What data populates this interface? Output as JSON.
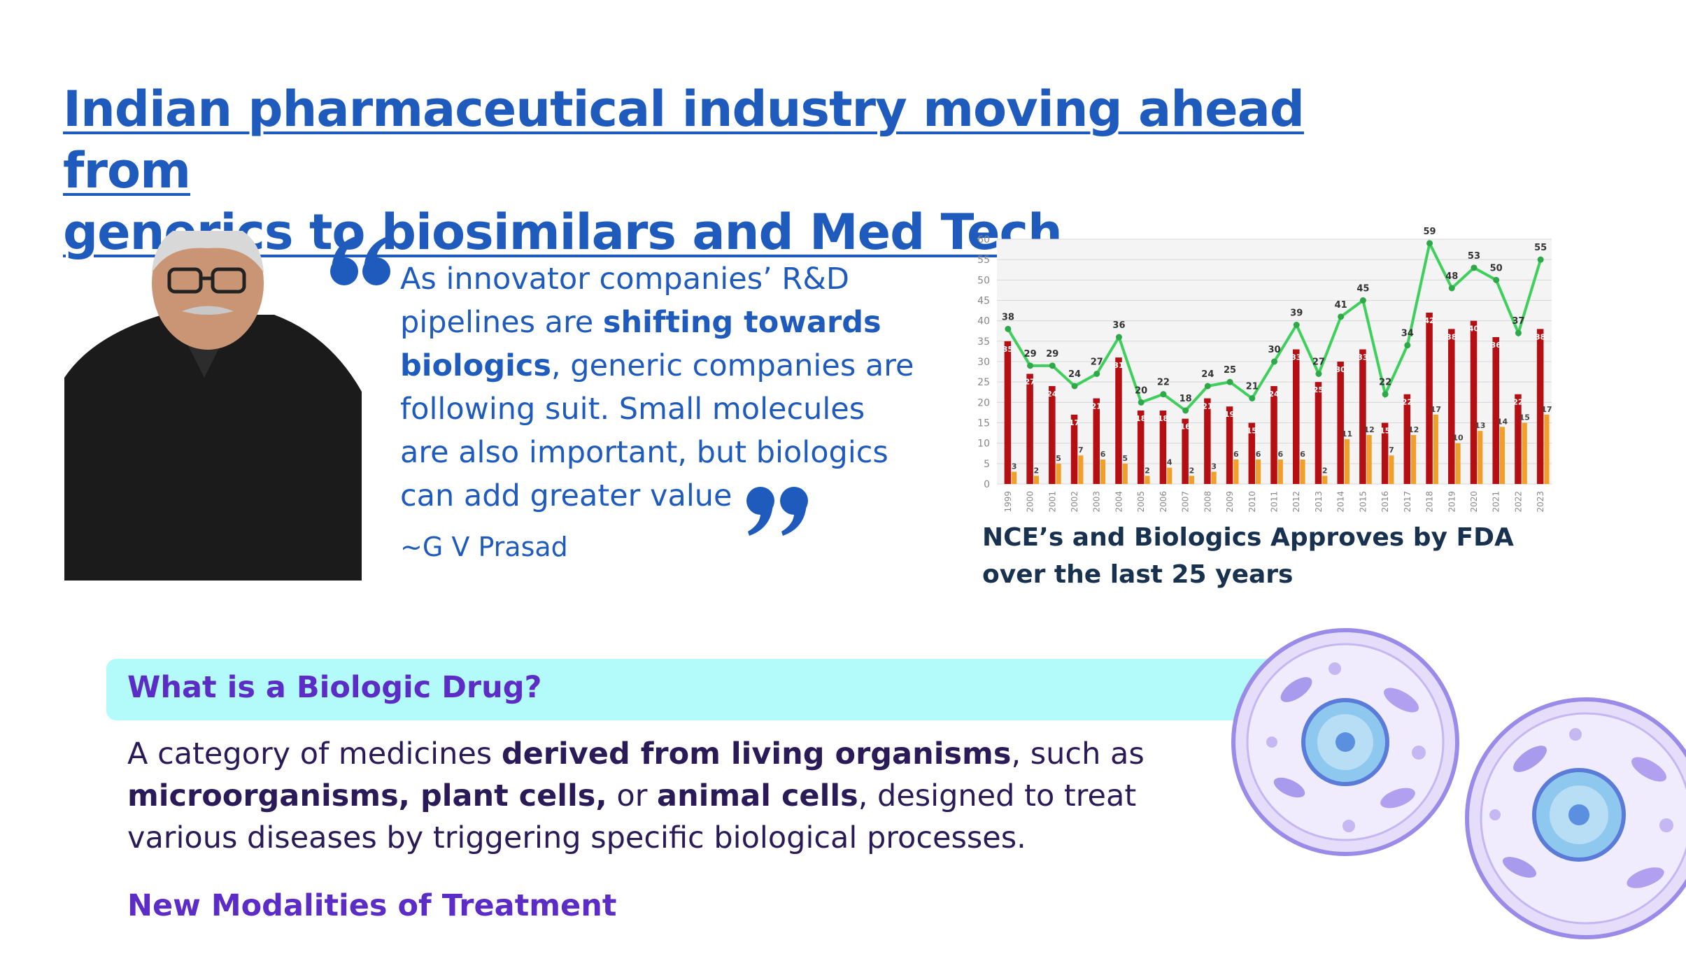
{
  "title": {
    "line1": "Indian pharmaceutical industry moving ahead from",
    "line2_underlined": "generics to biosimilars and Med Tec",
    "line2_rest": "h"
  },
  "quote": {
    "p1": "As innovator companies’ R&D pipelines are ",
    "b1": "shifting towards biologics",
    "p2": ", generic companies are following suit. Small molecules are also important, but biologics can add greater value",
    "author": "~G V Prasad"
  },
  "chart_caption": {
    "line1": "NCE’s and Biologics Approves by FDA",
    "line2": "over the last 25 years"
  },
  "biologic": {
    "heading": "What is a Biologic Drug?",
    "d1": "A category of medicines ",
    "b1": "derived from living organisms",
    "d2": ", such as ",
    "b2": "microorganisms, plant cells,",
    "d3": " or ",
    "b3": "animal cells",
    "d4": ", designed to treat various diseases by triggering specific biological processes.",
    "subheading": "New Modalities of Treatment"
  },
  "colors": {
    "title_blue": "#1f5bbd",
    "nce_bar": "#b50f14",
    "biologic_bar": "#f0a02a",
    "total_line": "#3fcf5c",
    "band": "#b3fbfa",
    "purple": "#5c2cc7"
  },
  "chart_data": {
    "type": "bar",
    "categories": [
      "1999",
      "2000",
      "2001",
      "2002",
      "2003",
      "2004",
      "2005",
      "2006",
      "2007",
      "2008",
      "2009",
      "2010",
      "2011",
      "2012",
      "2013",
      "2014",
      "2015",
      "2016",
      "2017",
      "2018",
      "2019",
      "2020",
      "2021",
      "2022",
      "2023"
    ],
    "series": [
      {
        "values": [
          35,
          27,
          24,
          17,
          21,
          31,
          18,
          18,
          16,
          21,
          19,
          15,
          24,
          33,
          25,
          30,
          33,
          15,
          22,
          42,
          38,
          40,
          36,
          22,
          38
        ],
        "kind": "bar"
      },
      {
        "values": [
          3,
          2,
          5,
          7,
          6,
          5,
          2,
          4,
          2,
          3,
          6,
          6,
          6,
          6,
          2,
          11,
          12,
          7,
          12,
          17,
          10,
          13,
          14,
          15,
          17
        ],
        "kind": "bar"
      },
      {
        "values": [
          38,
          29,
          29,
          24,
          27,
          36,
          20,
          22,
          18,
          24,
          25,
          21,
          30,
          39,
          27,
          41,
          45,
          22,
          34,
          59,
          48,
          53,
          50,
          37,
          55
        ],
        "kind": "line"
      }
    ],
    "yticks": [
      "0",
      "5",
      "10",
      "15",
      "20",
      "25",
      "30",
      "35",
      "40",
      "45",
      "50",
      "55",
      "60"
    ],
    "ylim": [
      0,
      60
    ],
    "grid": true
  }
}
